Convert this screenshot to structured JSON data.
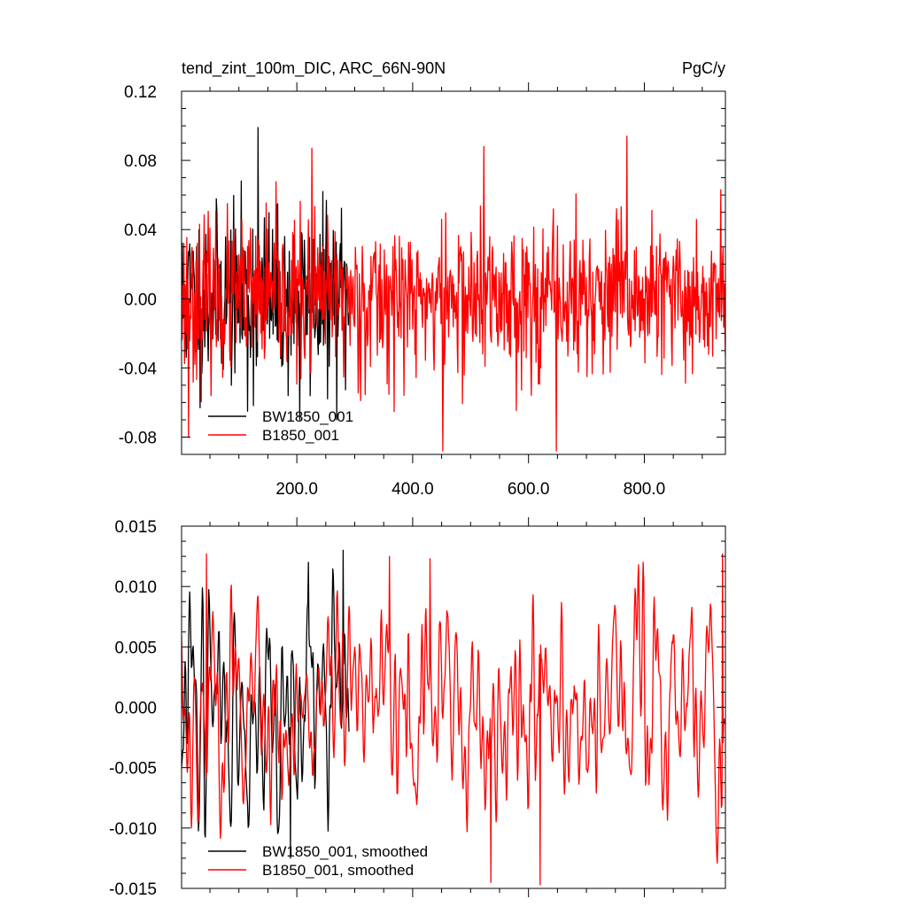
{
  "chart_data": [
    {
      "type": "line",
      "title": "tend_zint_100m_DIC, ARC_66N-90N",
      "units": "PgC/y",
      "xlim": [
        1,
        940
      ],
      "ylim": [
        -0.09,
        0.12
      ],
      "yticks": [
        -0.08,
        -0.04,
        0.0,
        0.04,
        0.08,
        0.12
      ],
      "ytick_labels": [
        "-0.08",
        "-0.04",
        "0.00",
        "0.04",
        "0.08",
        "0.12"
      ],
      "xticks": [
        200,
        400,
        600,
        800
      ],
      "xtick_labels": [
        "200.0",
        "400.0",
        "600.0",
        "800.0"
      ],
      "legend_position": "bottom-left",
      "series": [
        {
          "name": "BW1850_001",
          "color": "#000000",
          "x_range": [
            1,
            290
          ],
          "n": 290,
          "seed": 11,
          "sigma": 0.025,
          "clip": [
            -0.07,
            0.1
          ],
          "peaks": [
            {
              "x": 133,
              "y": 0.099
            },
            {
              "x": 115,
              "y": -0.065
            },
            {
              "x": 205,
              "y": -0.07
            }
          ]
        },
        {
          "name": "B1850_001",
          "color": "#ff0000",
          "x_range": [
            1,
            940
          ],
          "n": 940,
          "seed": 23,
          "sigma": 0.022,
          "clip": [
            -0.088,
            0.094
          ],
          "peaks": [
            {
              "x": 770,
              "y": 0.094
            },
            {
              "x": 452,
              "y": -0.088
            },
            {
              "x": 648,
              "y": -0.088
            },
            {
              "x": 523,
              "y": 0.088
            },
            {
              "x": 226,
              "y": 0.087
            },
            {
              "x": 932,
              "y": 0.063
            },
            {
              "x": 13,
              "y": -0.08
            }
          ]
        }
      ]
    },
    {
      "type": "line",
      "title": "",
      "xlim": [
        1,
        940
      ],
      "ylim": [
        -0.015,
        0.015
      ],
      "yticks": [
        -0.015,
        -0.01,
        -0.005,
        0.0,
        0.005,
        0.01,
        0.015
      ],
      "ytick_labels": [
        "-0.015",
        "-0.010",
        "-0.005",
        "0.000",
        "0.005",
        "0.010",
        "0.015"
      ],
      "xticks": [
        200,
        400,
        600,
        800
      ],
      "xtick_labels": [
        "",
        "",
        "",
        ""
      ],
      "legend_position": "bottom-left",
      "series": [
        {
          "name": "BW1850_001, smoothed",
          "color": "#000000",
          "x_range": [
            1,
            290
          ],
          "n": 290,
          "seed": 37,
          "sigma": 0.0045,
          "clip": [
            -0.0125,
            0.013
          ],
          "smooth": 3,
          "peaks": [
            {
              "x": 280,
              "y": 0.013
            },
            {
              "x": 220,
              "y": 0.012
            },
            {
              "x": 189,
              "y": -0.0125
            }
          ]
        },
        {
          "name": "B1850_001, smoothed",
          "color": "#ff0000",
          "x_range": [
            1,
            940
          ],
          "n": 940,
          "seed": 53,
          "sigma": 0.0042,
          "clip": [
            -0.0148,
            0.0127
          ],
          "smooth": 3,
          "peaks": [
            {
              "x": 620,
              "y": -0.0147
            },
            {
              "x": 535,
              "y": -0.0145
            },
            {
              "x": 44,
              "y": 0.0127
            },
            {
              "x": 935,
              "y": 0.0127
            },
            {
              "x": 360,
              "y": 0.0125
            },
            {
              "x": 430,
              "y": 0.0123
            }
          ]
        }
      ]
    }
  ]
}
